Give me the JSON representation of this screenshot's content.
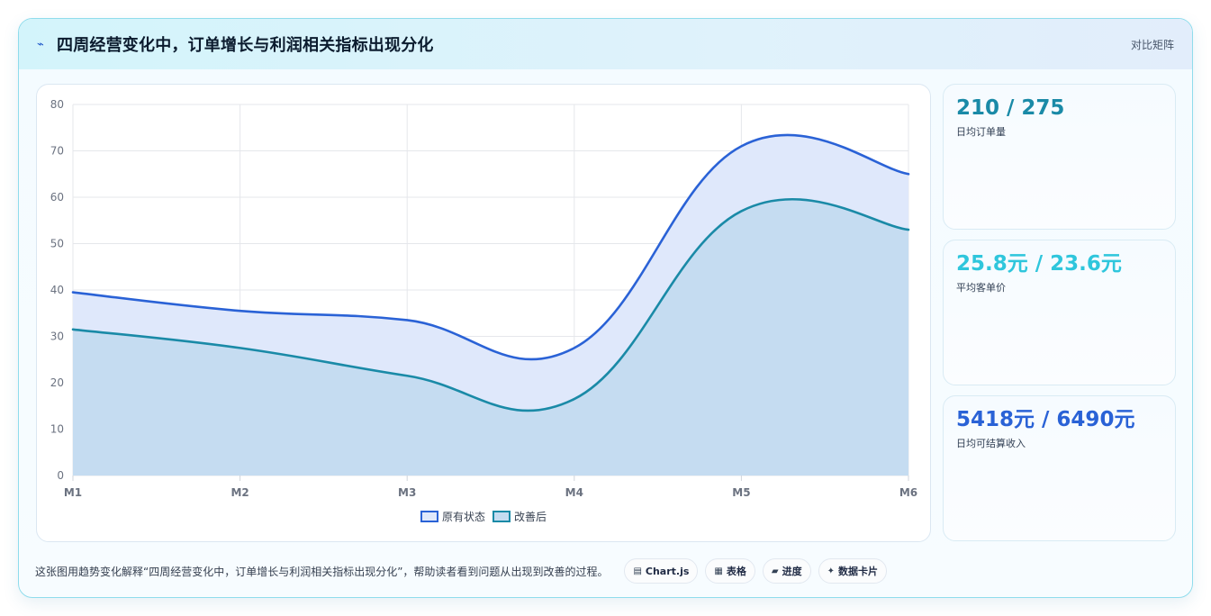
{
  "header": {
    "icon": "lightning-icon",
    "title": "四周经营变化中，订单增长与利润相关指标出现分化",
    "link": "对比矩阵"
  },
  "chart_data": {
    "type": "area",
    "categories": [
      "M1",
      "M2",
      "M3",
      "M4",
      "M5",
      "M6"
    ],
    "ylim": [
      0,
      80
    ],
    "yticks": [
      0,
      10,
      20,
      30,
      40,
      50,
      60,
      70,
      80
    ],
    "grid": true,
    "legend_position": "bottom",
    "series": [
      {
        "name": "原有状态",
        "values": [
          39.5,
          35.5,
          33.5,
          27.5,
          71,
          65
        ],
        "color": "#2a62d6",
        "fill": "#dfe8fb"
      },
      {
        "name": "改善后",
        "values": [
          31.5,
          27.5,
          21.5,
          16.5,
          57,
          53
        ],
        "color": "#1a8aa7",
        "fill": "#c5dcf1"
      }
    ]
  },
  "stats": [
    {
      "value": "210 / 275",
      "label": "日均订单量",
      "color": "#1a8aa7"
    },
    {
      "value": "25.8元 / 23.6元",
      "label": "平均客单价",
      "color": "#2fc6dc"
    },
    {
      "value": "5418元 / 6490元",
      "label": "日均可结算收入",
      "color": "#2a62d6"
    }
  ],
  "footer": {
    "text": "这张图用趋势变化解释“四周经营变化中，订单增长与利润相关指标出现分化”，帮助读者看到问题从出现到改善的过程。",
    "pills": [
      {
        "icon": "▤",
        "label": "Chart.js"
      },
      {
        "icon": "▦",
        "label": "表格"
      },
      {
        "icon": "▰",
        "label": "进度"
      },
      {
        "icon": "✦",
        "label": "数据卡片"
      }
    ]
  }
}
